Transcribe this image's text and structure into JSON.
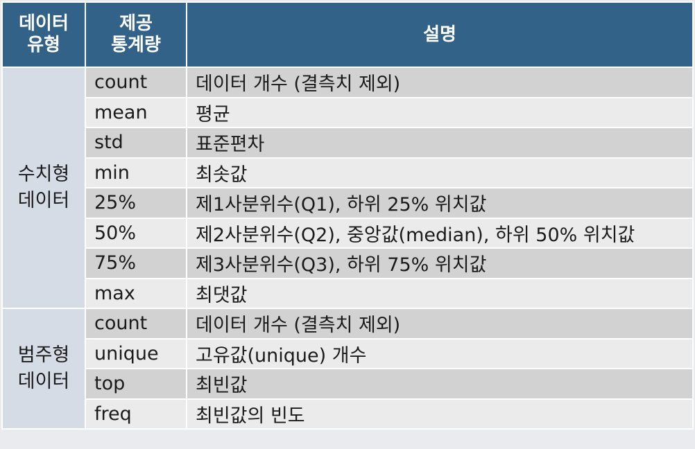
{
  "header": {
    "type_line1": "데이터",
    "type_line2": "유형",
    "stat_line1": "제공",
    "stat_line2": "통계량",
    "desc": "설명"
  },
  "numeric": {
    "type_line1": "수치형",
    "type_line2": "데이터",
    "rows": [
      {
        "stat": "count",
        "desc": "데이터 개수 (결측치 제외)"
      },
      {
        "stat": "mean",
        "desc": "평균"
      },
      {
        "stat": "std",
        "desc": "표준편차"
      },
      {
        "stat": "min",
        "desc": "최솟값"
      },
      {
        "stat": "25%",
        "desc": "제1사분위수(Q1), 하위 25% 위치값"
      },
      {
        "stat": "50%",
        "desc": "제2사분위수(Q2), 중앙값(median), 하위 50% 위치값"
      },
      {
        "stat": "75%",
        "desc": "제3사분위수(Q3), 하위 75% 위치값"
      },
      {
        "stat": "max",
        "desc": "최댓값"
      }
    ]
  },
  "categorical": {
    "type_line1": "범주형",
    "type_line2": "데이터",
    "rows": [
      {
        "stat": "count",
        "desc": "데이터 개수 (결측치 제외)"
      },
      {
        "stat": "unique",
        "desc": "고유값(unique) 개수"
      },
      {
        "stat": "top",
        "desc": "최빈값"
      },
      {
        "stat": "freq",
        "desc": "최빈값의 빈도"
      }
    ]
  }
}
